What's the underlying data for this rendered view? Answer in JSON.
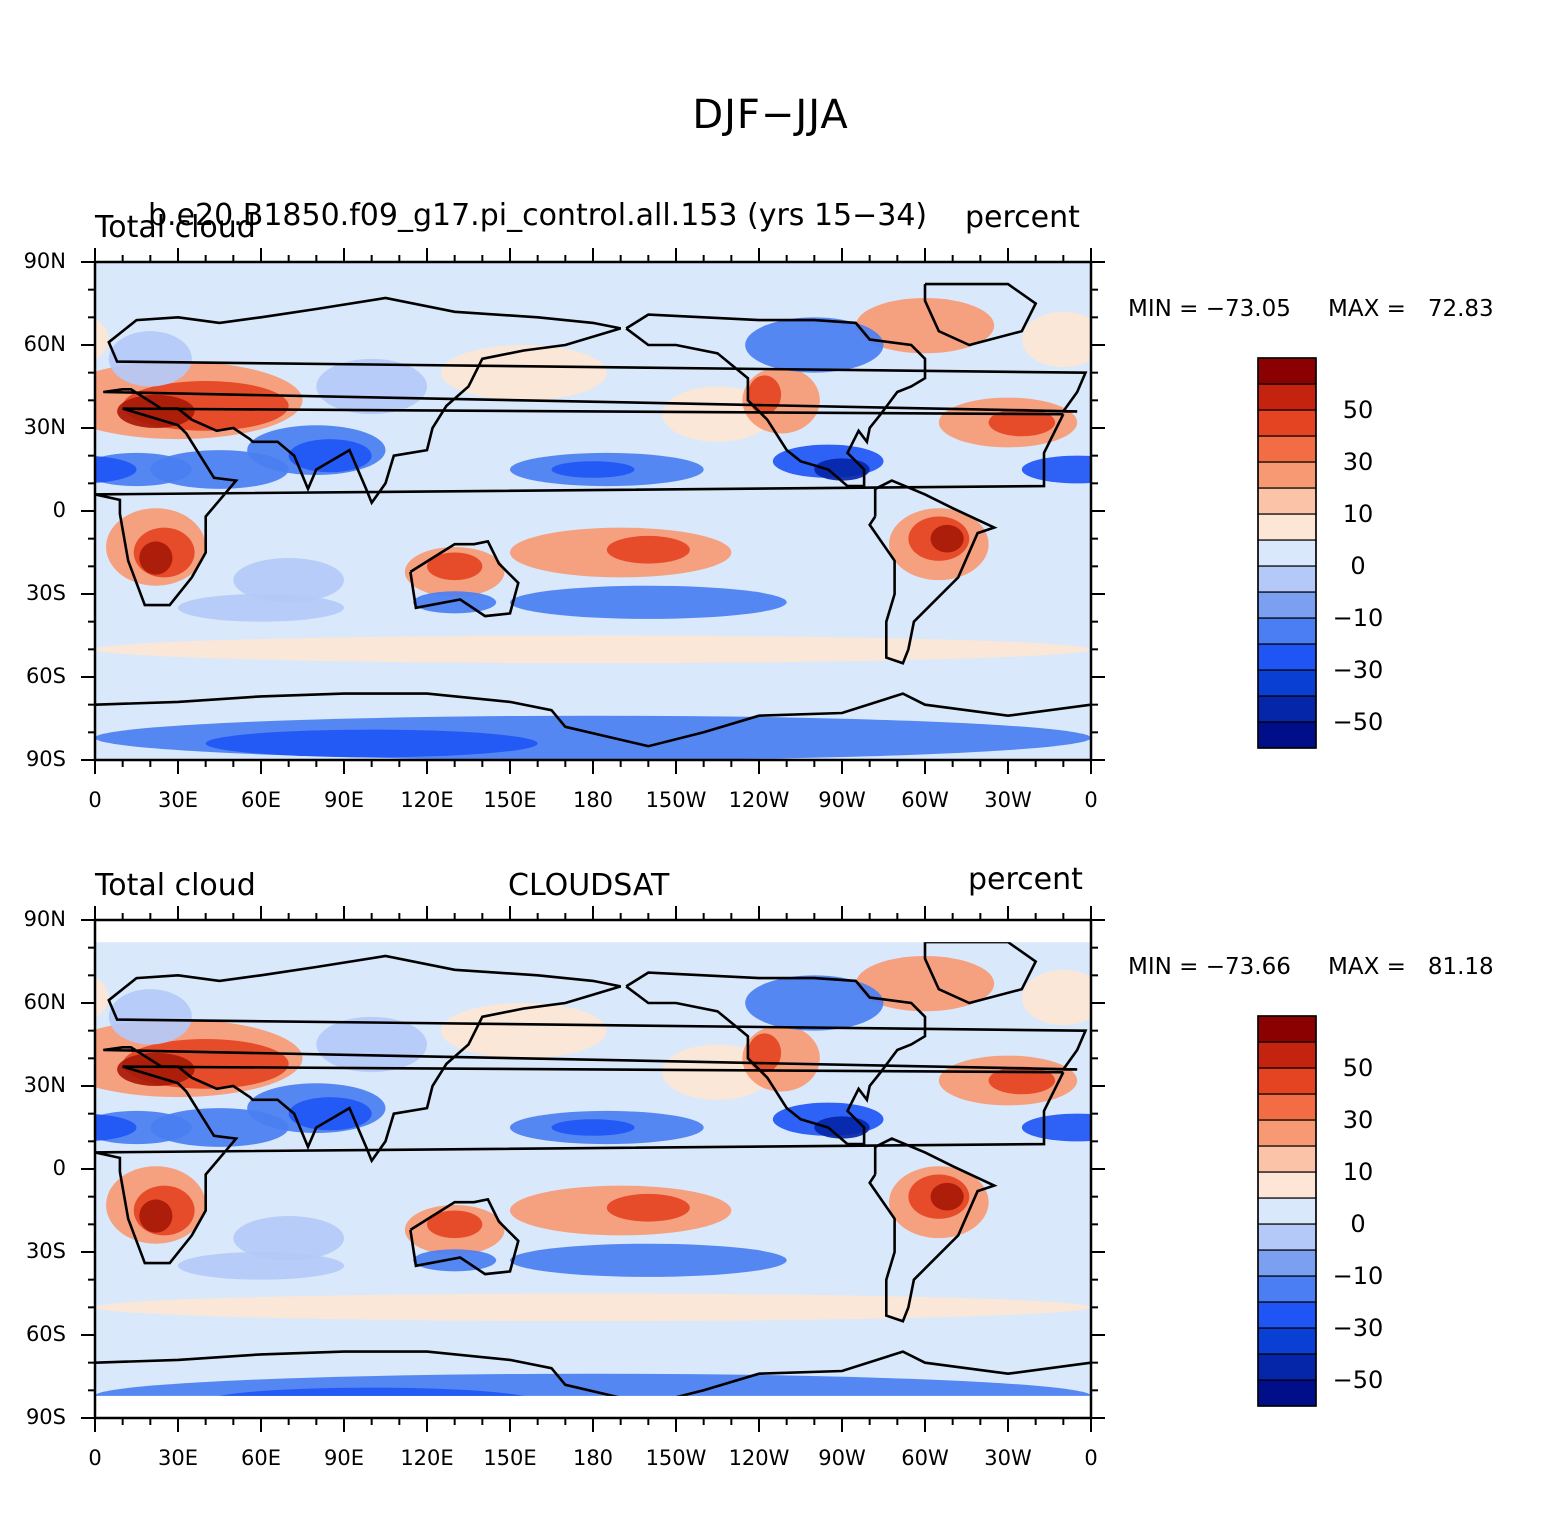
{
  "title": "DJF−JJA",
  "panels": [
    {
      "left_string": "Total cloud",
      "center_string": "b.e20.B1850.f09_g17.pi_control.all.153 (yrs 15−34)",
      "right_string": "percent",
      "min_label": "MIN = −73.05",
      "max_label": "MAX =   72.83",
      "data_extent": "full"
    },
    {
      "left_string": "Total cloud",
      "center_string": "CLOUDSAT",
      "right_string": "percent",
      "min_label": "MIN = −73.66",
      "max_label": "MAX =   81.18",
      "data_extent": "82S-82N"
    }
  ],
  "lat_labels": [
    "90N",
    "60N",
    "30N",
    "0",
    "30S",
    "60S",
    "90S"
  ],
  "lon_labels": [
    "0",
    "30E",
    "60E",
    "90E",
    "120E",
    "150E",
    "180",
    "150W",
    "120W",
    "90W",
    "60W",
    "30W",
    "0"
  ],
  "colorbar": {
    "labels": [
      "50",
      "30",
      "10",
      "0",
      "−10",
      "−30",
      "−50"
    ],
    "levels": [
      -60,
      -50,
      -40,
      -30,
      -20,
      -10,
      0,
      10,
      20,
      30,
      40,
      50,
      60
    ],
    "colors": [
      "#000e8a",
      "#0526a8",
      "#0a3fd4",
      "#1f55f5",
      "#4a7ef2",
      "#7ba0f2",
      "#b4c9f7",
      "#d9e9fb",
      "#fde6d5",
      "#fbc3a8",
      "#f79a74",
      "#f26d43",
      "#e54423",
      "#c4230f",
      "#8b0000"
    ]
  },
  "map_colors": {
    "ocean_neutral": "#d9e9fb",
    "warm_light": "#fde6d5",
    "warm_mid": "#f79a74",
    "warm_strong": "#e54423",
    "warm_max": "#a81a08",
    "cool_light": "#b4c9f7",
    "cool_mid": "#4a7ef2",
    "cool_strong": "#1f55f5",
    "cool_max": "#0526a8"
  }
}
